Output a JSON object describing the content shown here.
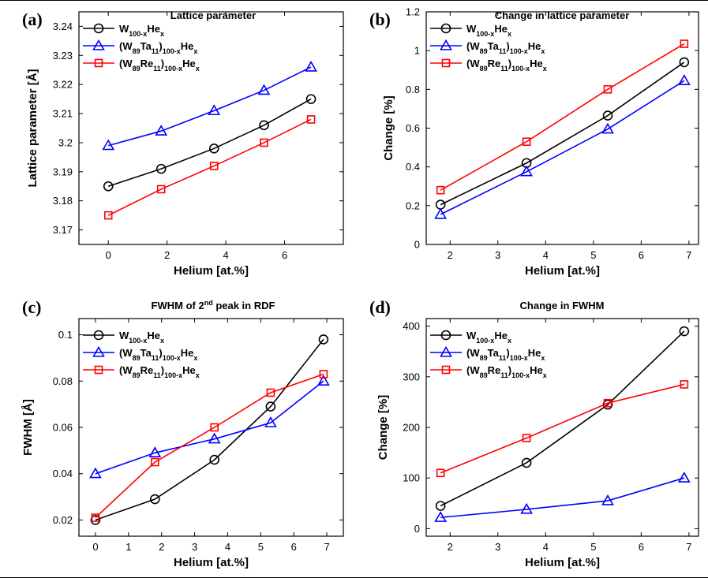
{
  "chart_data": [
    {
      "type": "line",
      "panel_label": "(a)",
      "title": "Lattice parameter",
      "xlabel": "Helium [at.%]",
      "ylabel": "Lattice parameter [Å]",
      "xlim": [
        -1,
        8
      ],
      "ylim": [
        3.165,
        3.245
      ],
      "xticks": [
        "0",
        "2",
        "4",
        "6"
      ],
      "yticks": [
        "3.17",
        "3.18",
        "3.19",
        "3.2",
        "3.21",
        "3.22",
        "3.23",
        "3.24"
      ],
      "legend_position": "top-left",
      "series": [
        {
          "name_base": "W",
          "name_sub": "100-x",
          "name_mid": "He",
          "name_sub2": "x",
          "name_tail": "",
          "color": "#000000",
          "marker": "circle",
          "x": [
            0,
            1.8,
            3.6,
            5.3,
            6.9
          ],
          "y": [
            3.185,
            3.191,
            3.198,
            3.206,
            3.215
          ]
        },
        {
          "name_base": "(W",
          "name_sub": "89",
          "name_mid": "Ta",
          "name_sub2": "11",
          "name_tail": ")",
          "name_sub3": "100-x",
          "name_end": "He",
          "name_sub4": "x",
          "color": "#0000ff",
          "marker": "triangle",
          "x": [
            0,
            1.8,
            3.6,
            5.3,
            6.9
          ],
          "y": [
            3.199,
            3.204,
            3.211,
            3.218,
            3.226
          ]
        },
        {
          "name_base": "(W",
          "name_sub": "89",
          "name_mid": "Re",
          "name_sub2": "11",
          "name_tail": ")",
          "name_sub3": "100-x",
          "name_end": "He",
          "name_sub4": "x",
          "color": "#ff0000",
          "marker": "square",
          "x": [
            0,
            1.8,
            3.6,
            5.3,
            6.9
          ],
          "y": [
            3.175,
            3.184,
            3.192,
            3.2,
            3.208
          ]
        }
      ]
    },
    {
      "type": "line",
      "panel_label": "(b)",
      "title": "Change in lattice parameter",
      "xlabel": "Helium [at.%]",
      "ylabel": "Change [%]",
      "xlim": [
        1.5,
        7.2
      ],
      "ylim": [
        0,
        1.2
      ],
      "xticks": [
        "2",
        "3",
        "4",
        "5",
        "6",
        "7"
      ],
      "yticks": [
        "0",
        "0.2",
        "0.4",
        "0.6",
        "0.8",
        "1",
        "1.2"
      ],
      "legend_position": "top-left",
      "series": [
        {
          "color": "#000000",
          "marker": "circle",
          "x": [
            1.8,
            3.6,
            5.3,
            6.9
          ],
          "y": [
            0.205,
            0.42,
            0.665,
            0.94
          ]
        },
        {
          "color": "#0000ff",
          "marker": "triangle",
          "x": [
            1.8,
            3.6,
            5.3,
            6.9
          ],
          "y": [
            0.155,
            0.375,
            0.595,
            0.845
          ]
        },
        {
          "color": "#ff0000",
          "marker": "square",
          "x": [
            1.8,
            3.6,
            5.3,
            6.9
          ],
          "y": [
            0.28,
            0.53,
            0.8,
            1.035
          ]
        }
      ]
    },
    {
      "type": "line",
      "panel_label": "(c)",
      "title_pre": "FWHM of 2",
      "title_sup": "nd",
      "title_post": " peak in RDF",
      "xlabel": "Helium [at.%]",
      "ylabel": "FWHM [Å]",
      "xlim": [
        -0.5,
        7.5
      ],
      "ylim": [
        0.013,
        0.107
      ],
      "xticks": [
        "0",
        "1",
        "2",
        "3",
        "4",
        "5",
        "6",
        "7"
      ],
      "yticks": [
        "0.02",
        "0.04",
        "0.06",
        "0.08",
        "0.1"
      ],
      "legend_position": "top-left",
      "series": [
        {
          "color": "#000000",
          "marker": "circle",
          "x": [
            0,
            1.8,
            3.6,
            5.3,
            6.9
          ],
          "y": [
            0.02,
            0.029,
            0.046,
            0.069,
            0.098
          ]
        },
        {
          "color": "#0000ff",
          "marker": "triangle",
          "x": [
            0,
            1.8,
            3.6,
            5.3,
            6.9
          ],
          "y": [
            0.04,
            0.049,
            0.055,
            0.062,
            0.08
          ]
        },
        {
          "color": "#ff0000",
          "marker": "square",
          "x": [
            0,
            1.8,
            3.6,
            5.3,
            6.9
          ],
          "y": [
            0.021,
            0.045,
            0.06,
            0.075,
            0.083
          ]
        }
      ]
    },
    {
      "type": "line",
      "panel_label": "(d)",
      "title": "Change in FWHM",
      "xlabel": "Helium [at.%]",
      "ylabel": "Change [%]",
      "xlim": [
        1.5,
        7.2
      ],
      "ylim": [
        -15,
        415
      ],
      "xticks": [
        "2",
        "3",
        "4",
        "5",
        "6",
        "7"
      ],
      "yticks": [
        "0",
        "100",
        "200",
        "300",
        "400"
      ],
      "legend_position": "top-left",
      "series": [
        {
          "color": "#000000",
          "marker": "circle",
          "x": [
            1.8,
            3.6,
            5.3,
            6.9
          ],
          "y": [
            45,
            130,
            245,
            390
          ]
        },
        {
          "color": "#0000ff",
          "marker": "triangle",
          "x": [
            1.8,
            3.6,
            5.3,
            6.9
          ],
          "y": [
            22,
            38,
            55,
            100
          ]
        },
        {
          "color": "#ff0000",
          "marker": "square",
          "x": [
            1.8,
            3.6,
            5.3,
            6.9
          ],
          "y": [
            110,
            179,
            248,
            285
          ]
        }
      ]
    }
  ],
  "legend": {
    "s1": {
      "main": "W",
      "sub": "100-x",
      "main2": "He",
      "sub2": "x"
    },
    "s2": {
      "main": "(W",
      "sub": "89",
      "main2": "Ta",
      "sub2": "11",
      "main3": ")",
      "sub3": "100-x",
      "main4": "He",
      "sub4": "x"
    },
    "s3": {
      "main": "(W",
      "sub": "89",
      "main2": "Re",
      "sub2": "11",
      "main3": ")",
      "sub3": "100-x",
      "main4": "He",
      "sub4": "x"
    }
  }
}
